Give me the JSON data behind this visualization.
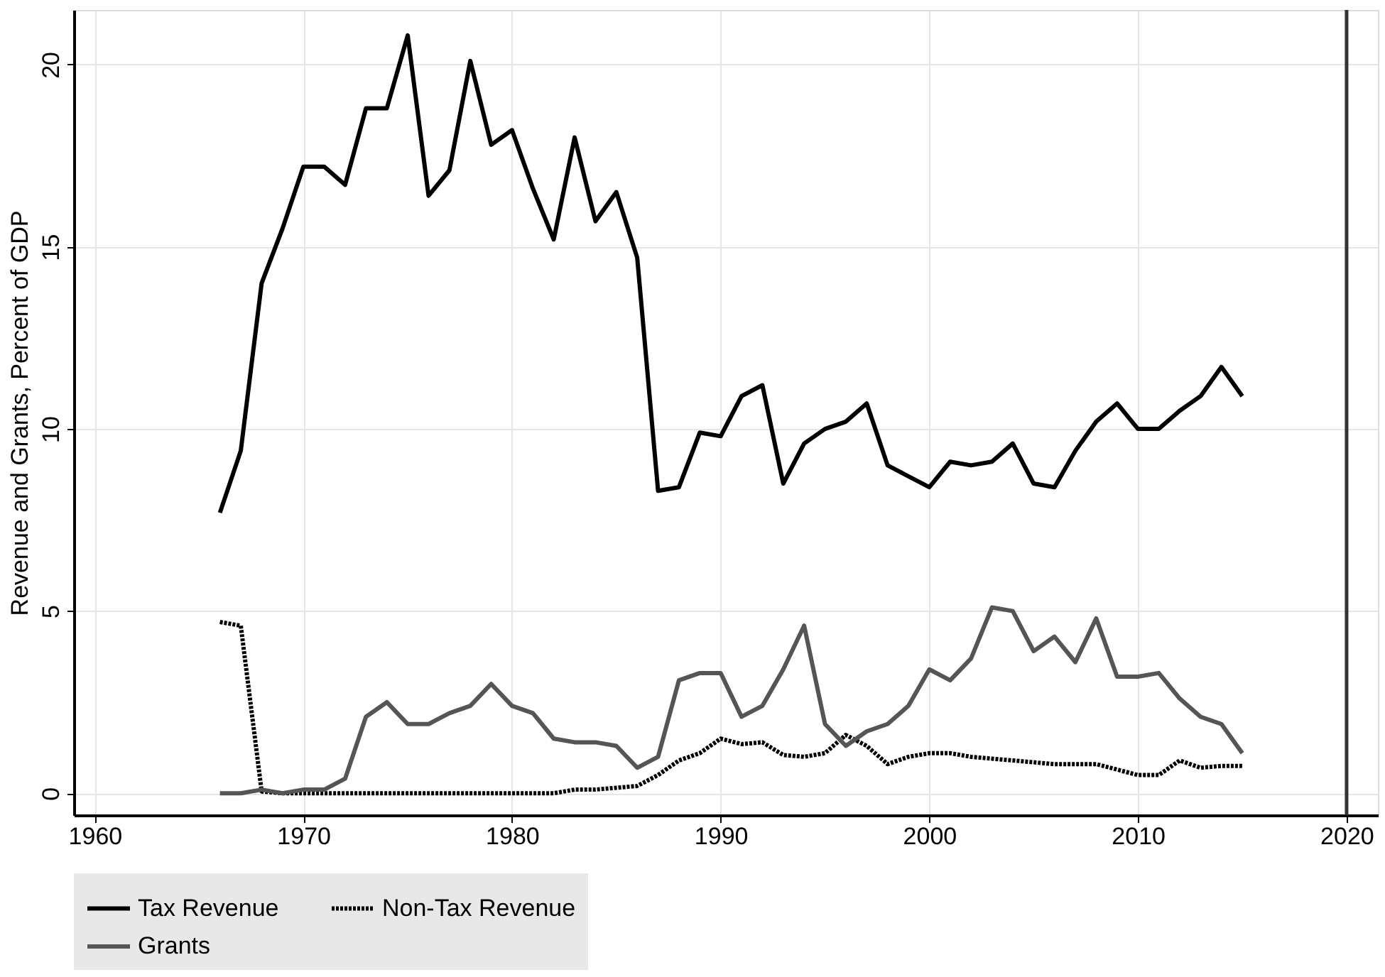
{
  "chart_data": {
    "type": "line",
    "ylabel": "Revenue and Grants, Percent of GDP",
    "x": [
      1966,
      1967,
      1968,
      1969,
      1970,
      1971,
      1972,
      1973,
      1974,
      1975,
      1976,
      1977,
      1978,
      1979,
      1980,
      1981,
      1982,
      1983,
      1984,
      1985,
      1986,
      1987,
      1988,
      1989,
      1990,
      1991,
      1992,
      1993,
      1994,
      1995,
      1996,
      1997,
      1998,
      1999,
      2000,
      2001,
      2002,
      2003,
      2004,
      2005,
      2006,
      2007,
      2008,
      2009,
      2010,
      2011,
      2012,
      2013,
      2014,
      2015
    ],
    "series": [
      {
        "name": "Tax Revenue",
        "color": "#000000",
        "line_style": "solid",
        "values": [
          7.7,
          9.4,
          14.0,
          15.5,
          17.2,
          17.2,
          16.7,
          18.8,
          18.8,
          20.8,
          16.4,
          17.1,
          20.1,
          17.8,
          18.2,
          16.6,
          15.2,
          18.0,
          15.7,
          16.5,
          14.7,
          8.3,
          8.4,
          9.9,
          9.8,
          10.9,
          11.2,
          8.5,
          9.6,
          10.0,
          10.2,
          10.7,
          9.0,
          8.7,
          8.4,
          9.1,
          9.0,
          9.1,
          9.6,
          8.5,
          8.4,
          9.4,
          10.2,
          10.7,
          10.0,
          10.0,
          10.5,
          10.9,
          11.7,
          10.9
        ]
      },
      {
        "name": "Non-Tax Revenue",
        "color": "#000000",
        "line_style": "dotted",
        "values": [
          4.7,
          4.6,
          0.05,
          0,
          0,
          0,
          0,
          0,
          0,
          0,
          0,
          0,
          0,
          0,
          0,
          0,
          0,
          0.1,
          0.1,
          0.15,
          0.2,
          0.5,
          0.9,
          1.1,
          1.5,
          1.35,
          1.4,
          1.05,
          1.0,
          1.1,
          1.6,
          1.3,
          0.8,
          1.0,
          1.1,
          1.1,
          1.0,
          0.95,
          0.9,
          0.85,
          0.8,
          0.8,
          0.8,
          0.65,
          0.5,
          0.5,
          0.9,
          0.7,
          0.75,
          0.75
        ]
      },
      {
        "name": "Grants",
        "color": "#555555",
        "line_style": "solid",
        "values": [
          0,
          0,
          0.1,
          0,
          0.1,
          0.1,
          0.4,
          2.1,
          2.5,
          1.9,
          1.9,
          2.2,
          2.4,
          3.0,
          2.4,
          2.2,
          1.5,
          1.4,
          1.4,
          1.3,
          0.7,
          1.0,
          3.1,
          3.3,
          3.3,
          2.1,
          2.4,
          3.4,
          4.6,
          1.9,
          1.3,
          1.7,
          1.9,
          2.4,
          3.4,
          3.1,
          3.7,
          5.1,
          5.0,
          3.9,
          4.3,
          3.6,
          4.8,
          3.2,
          3.2,
          3.3,
          2.6,
          2.1,
          1.9,
          1.1
        ]
      }
    ],
    "xlim": [
      1959,
      2021.5
    ],
    "xticks": [
      1960,
      1970,
      1980,
      1990,
      2000,
      2010,
      2020
    ],
    "ylim": [
      -0.6,
      21.5
    ],
    "yticks": [
      0,
      5,
      10,
      15,
      20
    ],
    "ref_lines": [
      {
        "axis": "x",
        "value": 2020,
        "color": "#333333",
        "line_style": "solid"
      }
    ],
    "grid": true,
    "legend": "bottom"
  }
}
